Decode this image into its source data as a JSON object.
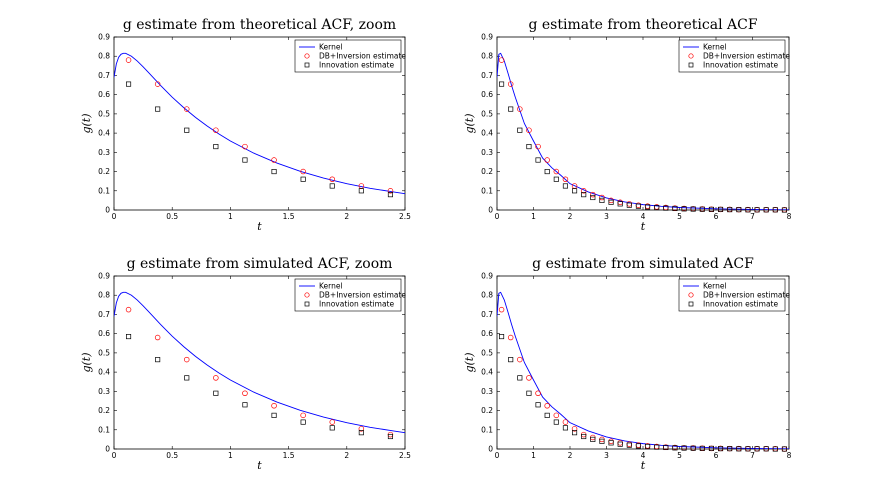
{
  "figure": {
    "background": "#ffffff"
  },
  "colors": {
    "kernel": "#0000ff",
    "db": "#ff0000",
    "innovation": "#000000"
  },
  "chart_data": [
    {
      "type": "line",
      "title": "g estimate from theoretical ACF, zoom",
      "xlabel": "t",
      "ylabel": "g(t)",
      "xlim": [
        0,
        2.5
      ],
      "ylim": [
        0,
        0.9
      ],
      "xticks": [
        0,
        0.5,
        1,
        1.5,
        2,
        2.5
      ],
      "xtick_labels": [
        "0",
        "0.5",
        "1",
        "1.5",
        "2",
        "2.5"
      ],
      "yticks": [
        0,
        0.1,
        0.2,
        0.3,
        0.4,
        0.5,
        0.6,
        0.7,
        0.8,
        0.9
      ],
      "ytick_labels": [
        "0",
        "0.1",
        "0.2",
        "0.3",
        "0.4",
        "0.5",
        "0.6",
        "0.7",
        "0.8",
        "0.9"
      ],
      "grid": false,
      "legend": "top-right",
      "kernel": {
        "name": "Kernel",
        "x": [
          0,
          0.02,
          0.04,
          0.06,
          0.08,
          0.1,
          0.15,
          0.2,
          0.25,
          0.3,
          0.4,
          0.5,
          0.6,
          0.7,
          0.8,
          0.9,
          1.0,
          1.2,
          1.4,
          1.6,
          1.8,
          2.0,
          2.2,
          2.4,
          2.5
        ],
        "y": [
          0.69,
          0.76,
          0.795,
          0.81,
          0.815,
          0.815,
          0.8,
          0.775,
          0.745,
          0.713,
          0.648,
          0.587,
          0.532,
          0.482,
          0.437,
          0.396,
          0.359,
          0.296,
          0.244,
          0.201,
          0.166,
          0.137,
          0.113,
          0.094,
          0.085
        ]
      },
      "series": [
        {
          "name": "DB+Inversion estimate",
          "marker": "circle",
          "x": [
            0.125,
            0.375,
            0.625,
            0.875,
            1.125,
            1.375,
            1.625,
            1.875,
            2.125,
            2.375
          ],
          "y": [
            0.78,
            0.655,
            0.525,
            0.415,
            0.33,
            0.26,
            0.2,
            0.16,
            0.125,
            0.1
          ]
        },
        {
          "name": "Innovation estimate",
          "marker": "square",
          "x": [
            0.125,
            0.375,
            0.625,
            0.875,
            1.125,
            1.375,
            1.625,
            1.875,
            2.125,
            2.375
          ],
          "y": [
            0.655,
            0.525,
            0.415,
            0.33,
            0.26,
            0.2,
            0.16,
            0.125,
            0.1,
            0.08
          ]
        }
      ]
    },
    {
      "type": "line",
      "title": "g estimate from theoretical ACF",
      "xlabel": "t",
      "ylabel": "g(t)",
      "xlim": [
        0,
        8
      ],
      "ylim": [
        0,
        0.9
      ],
      "xticks": [
        0,
        1,
        2,
        3,
        4,
        5,
        6,
        7,
        8
      ],
      "xtick_labels": [
        "0",
        "1",
        "2",
        "3",
        "4",
        "5",
        "6",
        "7",
        "8"
      ],
      "yticks": [
        0,
        0.1,
        0.2,
        0.3,
        0.4,
        0.5,
        0.6,
        0.7,
        0.8,
        0.9
      ],
      "ytick_labels": [
        "0",
        "0.1",
        "0.2",
        "0.3",
        "0.4",
        "0.5",
        "0.6",
        "0.7",
        "0.8",
        "0.9"
      ],
      "grid": false,
      "legend": "top-right",
      "kernel": {
        "name": "Kernel",
        "x": [
          0,
          0.05,
          0.1,
          0.2,
          0.3,
          0.4,
          0.5,
          0.75,
          1,
          1.25,
          1.5,
          1.75,
          2,
          2.5,
          3,
          3.5,
          4,
          4.5,
          5,
          6,
          7,
          8
        ],
        "y": [
          0.69,
          0.81,
          0.815,
          0.775,
          0.713,
          0.648,
          0.587,
          0.45,
          0.359,
          0.27,
          0.22,
          0.18,
          0.137,
          0.094,
          0.063,
          0.042,
          0.028,
          0.019,
          0.013,
          0.006,
          0.003,
          0.001
        ]
      },
      "series": [
        {
          "name": "DB+Inversion estimate",
          "marker": "circle",
          "x": [
            0.125,
            0.375,
            0.625,
            0.875,
            1.125,
            1.375,
            1.625,
            1.875,
            2.125,
            2.375,
            2.625,
            2.875,
            3.125,
            3.375,
            3.625,
            3.875,
            4.125,
            4.375,
            4.625,
            4.875,
            5.125,
            5.375,
            5.625,
            5.875,
            6.125,
            6.375,
            6.625,
            6.875,
            7.125,
            7.375,
            7.625,
            7.875
          ],
          "y": [
            0.78,
            0.655,
            0.525,
            0.415,
            0.33,
            0.26,
            0.2,
            0.16,
            0.125,
            0.1,
            0.08,
            0.065,
            0.05,
            0.04,
            0.032,
            0.025,
            0.02,
            0.016,
            0.013,
            0.01,
            0.008,
            0.006,
            0.005,
            0.004,
            0.003,
            0.003,
            0.002,
            0.002,
            0.001,
            0.001,
            0.001,
            0.001
          ]
        },
        {
          "name": "Innovation estimate",
          "marker": "square",
          "x": [
            0.125,
            0.375,
            0.625,
            0.875,
            1.125,
            1.375,
            1.625,
            1.875,
            2.125,
            2.375,
            2.625,
            2.875,
            3.125,
            3.375,
            3.625,
            3.875,
            4.125,
            4.375,
            4.625,
            4.875,
            5.125,
            5.375,
            5.625,
            5.875,
            6.125,
            6.375,
            6.625,
            6.875,
            7.125,
            7.375,
            7.625,
            7.875
          ],
          "y": [
            0.655,
            0.525,
            0.415,
            0.33,
            0.26,
            0.2,
            0.16,
            0.125,
            0.1,
            0.08,
            0.065,
            0.05,
            0.04,
            0.032,
            0.025,
            0.02,
            0.016,
            0.013,
            0.01,
            0.008,
            0.006,
            0.005,
            0.004,
            0.003,
            0.003,
            0.002,
            0.002,
            0.001,
            0.001,
            0.001,
            0.001,
            0.0
          ]
        }
      ]
    },
    {
      "type": "line",
      "title": "g estimate from simulated ACF, zoom",
      "xlabel": "t",
      "ylabel": "g(t)",
      "xlim": [
        0,
        2.5
      ],
      "ylim": [
        0,
        0.9
      ],
      "xticks": [
        0,
        0.5,
        1,
        1.5,
        2,
        2.5
      ],
      "xtick_labels": [
        "0",
        "0.5",
        "1",
        "1.5",
        "2",
        "2.5"
      ],
      "yticks": [
        0,
        0.1,
        0.2,
        0.3,
        0.4,
        0.5,
        0.6,
        0.7,
        0.8,
        0.9
      ],
      "ytick_labels": [
        "0",
        "0.1",
        "0.2",
        "0.3",
        "0.4",
        "0.5",
        "0.6",
        "0.7",
        "0.8",
        "0.9"
      ],
      "grid": false,
      "legend": "top-right",
      "kernel": {
        "name": "Kernel",
        "x": [
          0,
          0.02,
          0.04,
          0.06,
          0.08,
          0.1,
          0.15,
          0.2,
          0.25,
          0.3,
          0.4,
          0.5,
          0.6,
          0.7,
          0.8,
          0.9,
          1.0,
          1.2,
          1.4,
          1.6,
          1.8,
          2.0,
          2.2,
          2.4,
          2.5
        ],
        "y": [
          0.69,
          0.76,
          0.795,
          0.81,
          0.815,
          0.815,
          0.8,
          0.775,
          0.745,
          0.713,
          0.648,
          0.587,
          0.532,
          0.482,
          0.437,
          0.396,
          0.359,
          0.296,
          0.244,
          0.201,
          0.166,
          0.137,
          0.113,
          0.094,
          0.085
        ]
      },
      "series": [
        {
          "name": "DB+Inversion estimate",
          "marker": "circle",
          "x": [
            0.125,
            0.375,
            0.625,
            0.875,
            1.125,
            1.375,
            1.625,
            1.875,
            2.125,
            2.375
          ],
          "y": [
            0.725,
            0.58,
            0.465,
            0.37,
            0.29,
            0.225,
            0.175,
            0.14,
            0.105,
            0.075
          ]
        },
        {
          "name": "Innovation estimate",
          "marker": "square",
          "x": [
            0.125,
            0.375,
            0.625,
            0.875,
            1.125,
            1.375,
            1.625,
            1.875,
            2.125,
            2.375
          ],
          "y": [
            0.585,
            0.465,
            0.37,
            0.29,
            0.23,
            0.175,
            0.14,
            0.11,
            0.085,
            0.065
          ]
        }
      ]
    },
    {
      "type": "line",
      "title": "g estimate from simulated ACF",
      "xlabel": "t",
      "ylabel": "g(t)",
      "xlim": [
        0,
        8
      ],
      "ylim": [
        0,
        0.9
      ],
      "xticks": [
        0,
        1,
        2,
        3,
        4,
        5,
        6,
        7,
        8
      ],
      "xtick_labels": [
        "0",
        "1",
        "2",
        "3",
        "4",
        "5",
        "6",
        "7",
        "8"
      ],
      "yticks": [
        0,
        0.1,
        0.2,
        0.3,
        0.4,
        0.5,
        0.6,
        0.7,
        0.8,
        0.9
      ],
      "ytick_labels": [
        "0",
        "0.1",
        "0.2",
        "0.3",
        "0.4",
        "0.5",
        "0.6",
        "0.7",
        "0.8",
        "0.9"
      ],
      "grid": false,
      "legend": "top-right",
      "kernel": {
        "name": "Kernel",
        "x": [
          0,
          0.05,
          0.1,
          0.2,
          0.3,
          0.4,
          0.5,
          0.75,
          1,
          1.25,
          1.5,
          1.75,
          2,
          2.5,
          3,
          3.5,
          4,
          4.5,
          5,
          6,
          7,
          8
        ],
        "y": [
          0.69,
          0.81,
          0.815,
          0.775,
          0.713,
          0.648,
          0.587,
          0.45,
          0.359,
          0.27,
          0.22,
          0.18,
          0.137,
          0.094,
          0.063,
          0.042,
          0.028,
          0.019,
          0.013,
          0.006,
          0.003,
          0.001
        ]
      },
      "series": [
        {
          "name": "DB+Inversion estimate",
          "marker": "circle",
          "x": [
            0.125,
            0.375,
            0.625,
            0.875,
            1.125,
            1.375,
            1.625,
            1.875,
            2.125,
            2.375,
            2.625,
            2.875,
            3.125,
            3.375,
            3.625,
            3.875,
            4.125,
            4.375,
            4.625,
            4.875,
            5.125,
            5.375,
            5.625,
            5.875,
            6.125,
            6.375,
            6.625,
            6.875,
            7.125,
            7.375,
            7.625,
            7.875
          ],
          "y": [
            0.725,
            0.58,
            0.465,
            0.37,
            0.29,
            0.225,
            0.175,
            0.14,
            0.105,
            0.075,
            0.06,
            0.05,
            0.04,
            0.032,
            0.025,
            0.02,
            0.016,
            0.013,
            0.01,
            0.008,
            0.006,
            0.005,
            0.004,
            0.003,
            0.003,
            0.002,
            0.002,
            0.001,
            0.001,
            0.001,
            0.001,
            0.0
          ]
        },
        {
          "name": "Innovation estimate",
          "marker": "square",
          "x": [
            0.125,
            0.375,
            0.625,
            0.875,
            1.125,
            1.375,
            1.625,
            1.875,
            2.125,
            2.375,
            2.625,
            2.875,
            3.125,
            3.375,
            3.625,
            3.875,
            4.125,
            4.375,
            4.625,
            4.875,
            5.125,
            5.375,
            5.625,
            5.875,
            6.125,
            6.375,
            6.625,
            6.875,
            7.125,
            7.375,
            7.625,
            7.875
          ],
          "y": [
            0.585,
            0.465,
            0.37,
            0.29,
            0.23,
            0.175,
            0.14,
            0.11,
            0.085,
            0.065,
            0.05,
            0.04,
            0.032,
            0.025,
            0.02,
            0.016,
            0.013,
            0.01,
            0.008,
            0.006,
            0.005,
            0.004,
            0.003,
            0.003,
            0.002,
            0.002,
            0.001,
            0.001,
            0.001,
            0.001,
            0.0,
            0.0
          ]
        }
      ]
    }
  ]
}
